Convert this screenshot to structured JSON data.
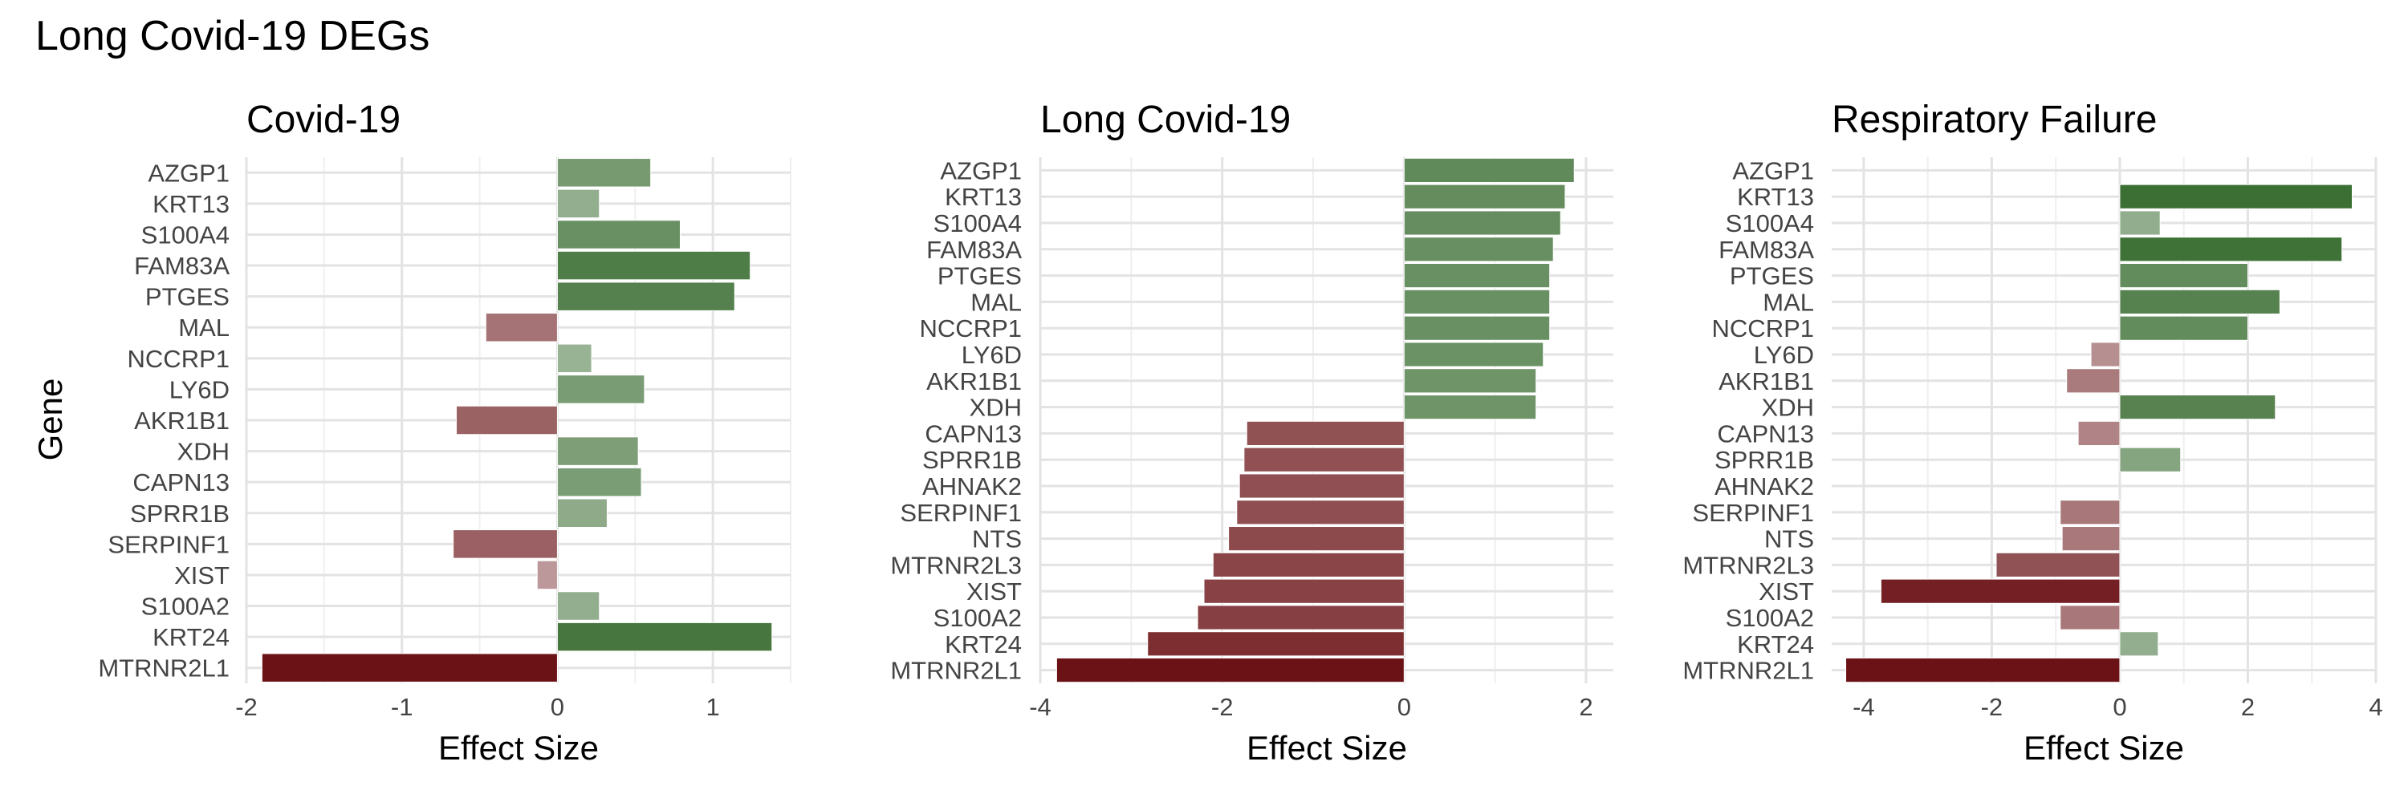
{
  "title": "Long Covid-19 DEGs",
  "ylabel": "Gene",
  "chart_data": [
    {
      "type": "bar",
      "title": "Covid-19",
      "xlabel": "Effect Size",
      "xlim": [
        -2.0,
        1.5
      ],
      "xticks": [
        -2,
        -1,
        0,
        1
      ],
      "categories": [
        "AZGP1",
        "KRT13",
        "S100A4",
        "FAM83A",
        "PTGES",
        "MAL",
        "NCCRP1",
        "LY6D",
        "AKR1B1",
        "XDH",
        "CAPN13",
        "SPRR1B",
        "SERPINF1",
        "XIST",
        "S100A2",
        "KRT24",
        "MTRNR2L1"
      ],
      "values": [
        0.6,
        0.27,
        0.79,
        1.24,
        1.14,
        -0.46,
        0.22,
        0.56,
        -0.65,
        0.52,
        0.54,
        0.32,
        -0.67,
        -0.13,
        0.27,
        1.38,
        -1.9
      ]
    },
    {
      "type": "bar",
      "title": "Long Covid-19",
      "xlabel": "Effect Size",
      "xlim": [
        -4.0,
        2.3
      ],
      "xticks": [
        -4,
        -2,
        0,
        2
      ],
      "categories": [
        "AZGP1",
        "KRT13",
        "S100A4",
        "FAM83A",
        "PTGES",
        "MAL",
        "NCCRP1",
        "LY6D",
        "AKR1B1",
        "XDH",
        "CAPN13",
        "SPRR1B",
        "AHNAK2",
        "SERPINF1",
        "NTS",
        "MTRNR2L3",
        "XIST",
        "S100A2",
        "KRT24",
        "MTRNR2L1"
      ],
      "values": [
        1.87,
        1.77,
        1.72,
        1.64,
        1.6,
        1.6,
        1.6,
        1.53,
        1.45,
        1.45,
        -1.73,
        -1.76,
        -1.81,
        -1.84,
        -1.93,
        -2.1,
        -2.2,
        -2.27,
        -2.82,
        -3.82
      ]
    },
    {
      "type": "bar",
      "title": "Respiratory Failure",
      "xlabel": "Effect Size",
      "xlim": [
        -4.5,
        4.0
      ],
      "xticks": [
        -4,
        -2,
        0,
        2,
        4
      ],
      "categories": [
        "AZGP1",
        "KRT13",
        "S100A4",
        "FAM83A",
        "PTGES",
        "MAL",
        "NCCRP1",
        "LY6D",
        "AKR1B1",
        "XDH",
        "CAPN13",
        "SPRR1B",
        "AHNAK2",
        "SERPINF1",
        "NTS",
        "MTRNR2L3",
        "XIST",
        "S100A2",
        "KRT24",
        "MTRNR2L1"
      ],
      "values": [
        0,
        3.63,
        0.63,
        3.47,
        2.0,
        2.5,
        2.0,
        -0.45,
        -0.83,
        2.43,
        -0.65,
        0.95,
        0,
        -0.93,
        -0.9,
        -1.93,
        -3.73,
        -0.93,
        0.6,
        -4.28
      ]
    }
  ],
  "colors": {
    "positive_max": "#2d6524",
    "negative_max": "#6b1216",
    "neutral": "#f2f2f2"
  }
}
